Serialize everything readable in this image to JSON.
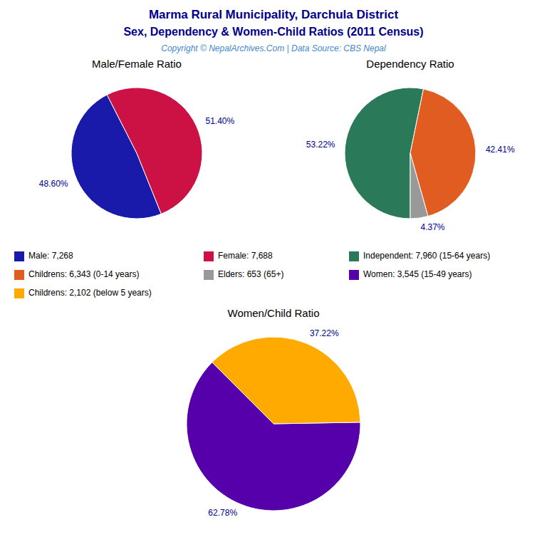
{
  "title": "Marma Rural Municipality, Darchula District",
  "subtitle": "Sex, Dependency & Women-Child Ratios (2011 Census)",
  "annotations": [
    "Copyright © NepalArchives.Com | Data Source: CBS Nepal"
  ],
  "chart_data": [
    {
      "type": "pie",
      "title": "Male/Female Ratio",
      "categories": [
        "Male: 7,268",
        "Female: 7,688"
      ],
      "values": [
        48.6,
        51.4
      ],
      "value_labels": [
        "48.60%",
        "51.40%"
      ],
      "colors": [
        "#1a1aaa",
        "#cc1144"
      ],
      "data_labels": true,
      "legend": "center"
    },
    {
      "type": "pie",
      "title": "Dependency Ratio",
      "categories": [
        "Independent: 7,960 (15-64 years)",
        "Childrens: 6,343 (0-14 years)",
        "Elders: 653 (65+)"
      ],
      "values": [
        53.22,
        42.41,
        4.37
      ],
      "value_labels": [
        "53.22%",
        "42.41%",
        "4.37%"
      ],
      "colors": [
        "#2a7a5a",
        "#e05c20",
        "#999999"
      ],
      "data_labels": true,
      "legend": "center"
    },
    {
      "type": "pie",
      "title": "Women/Child Ratio",
      "categories": [
        "Women: 3,545 (15-49 years)",
        "Childrens: 2,102 (below 5 years)"
      ],
      "values": [
        62.78,
        37.22
      ],
      "value_labels": [
        "62.78%",
        "37.22%"
      ],
      "colors": [
        "#5500aa",
        "#ffaa00"
      ],
      "data_labels": true,
      "legend": "center"
    }
  ]
}
